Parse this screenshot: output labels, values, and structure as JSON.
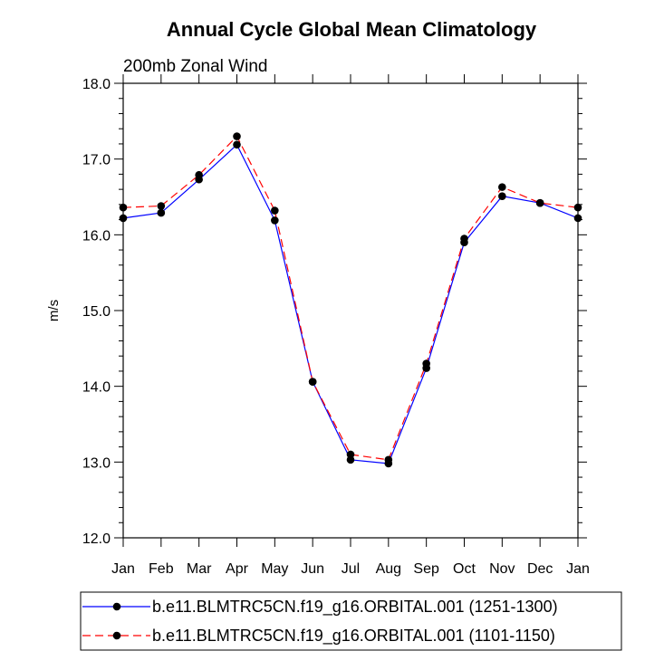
{
  "chart_data": {
    "type": "line",
    "title": "Annual Cycle Global Mean Climatology",
    "subtitle": "200mb Zonal Wind",
    "xlabel": "",
    "ylabel": "m/s",
    "ylim": [
      12.0,
      18.0
    ],
    "yticks": [
      "12.0",
      "13.0",
      "14.0",
      "15.0",
      "16.0",
      "17.0",
      "18.0"
    ],
    "categories": [
      "Jan",
      "Feb",
      "Mar",
      "Apr",
      "May",
      "Jun",
      "Jul",
      "Aug",
      "Sep",
      "Oct",
      "Nov",
      "Dec",
      "Jan"
    ],
    "grid": false,
    "legend": "bottom",
    "series": [
      {
        "name": "b.e11.BLMTRC5CN.f19_g16.ORBITAL.001 (1251-1300)",
        "color": "#0000ff",
        "dash": "solid",
        "values": [
          16.22,
          16.29,
          16.73,
          17.19,
          16.19,
          14.06,
          13.03,
          12.98,
          14.24,
          15.9,
          16.51,
          16.42,
          16.22
        ]
      },
      {
        "name": "b.e11.BLMTRC5CN.f19_g16.ORBITAL.001 (1101-1150)",
        "color": "#ff0000",
        "dash": "dashed",
        "values": [
          16.36,
          16.38,
          16.79,
          17.3,
          16.32,
          14.06,
          13.1,
          13.03,
          14.3,
          15.95,
          16.63,
          16.42,
          16.36
        ]
      }
    ]
  }
}
